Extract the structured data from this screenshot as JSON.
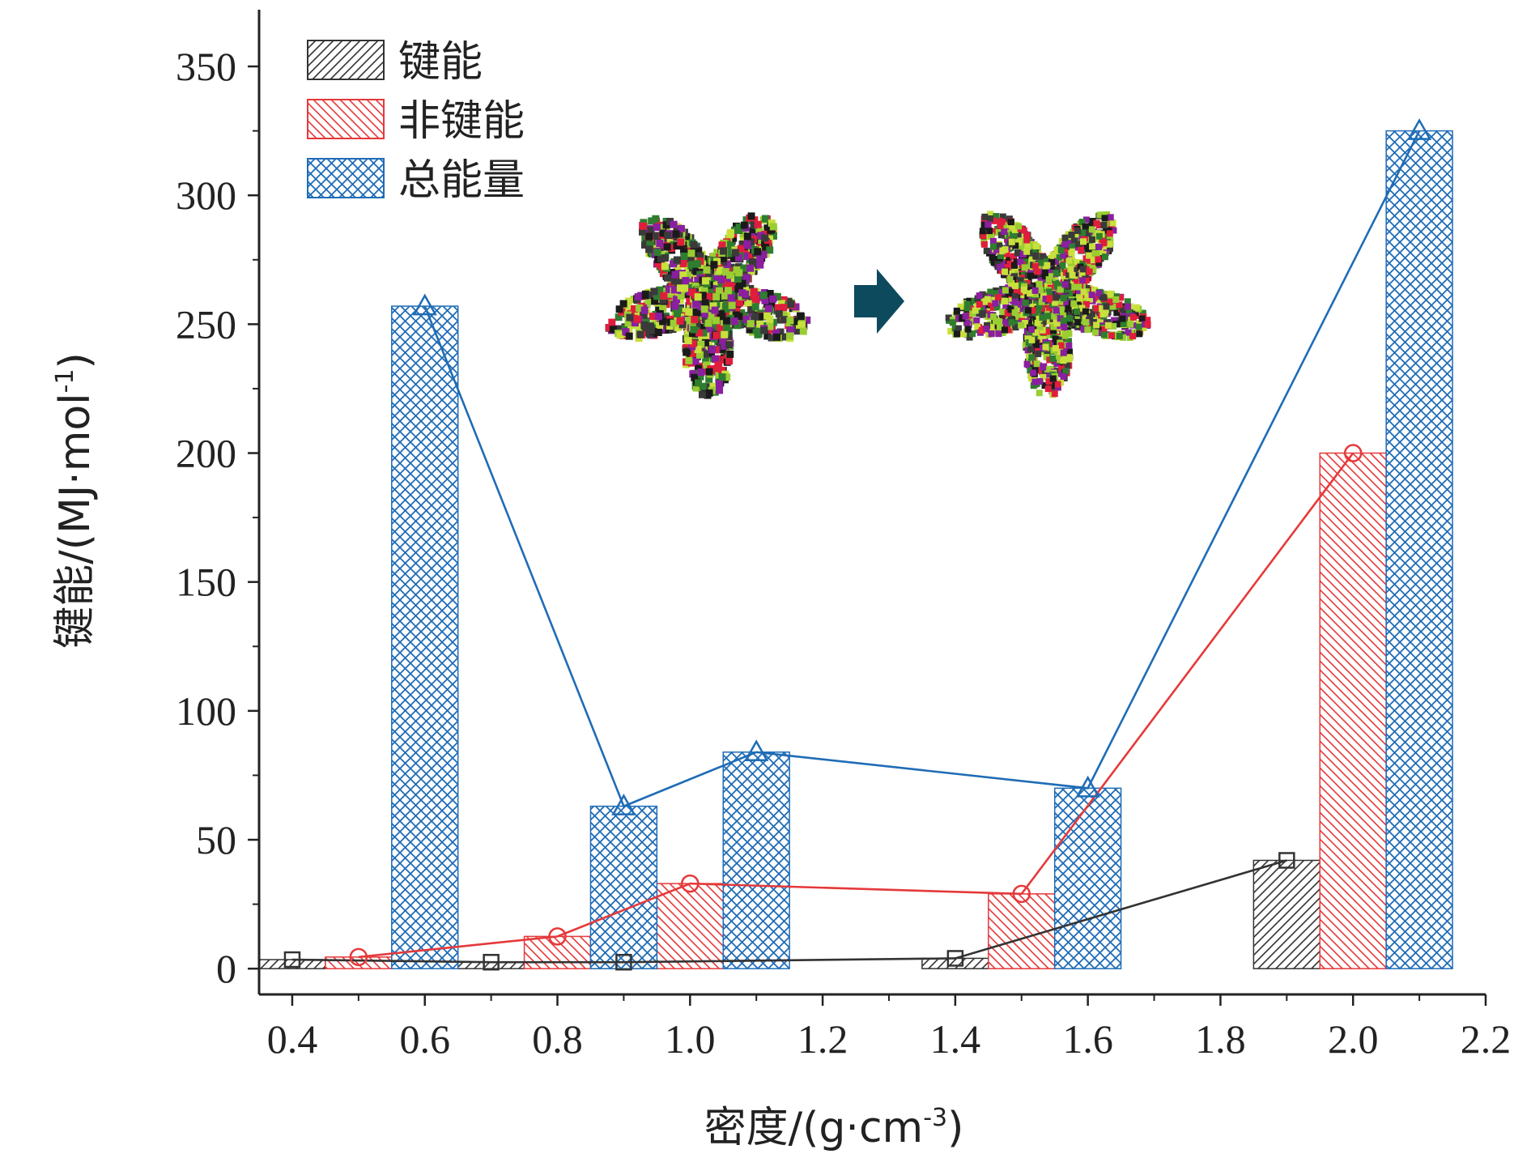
{
  "chart_data": {
    "type": "bar",
    "xlabel": "密度/(g·cm",
    "xlabel_sup": "-3",
    "xlabel_end": ")",
    "ylabel": "键能/(MJ·mol",
    "ylabel_sup": "-1",
    "ylabel_end": ")",
    "xlim": [
      0.35,
      2.2
    ],
    "ylim": [
      -10,
      372
    ],
    "x_ticks": [
      "0.4",
      "0.6",
      "0.8",
      "1.0",
      "1.2",
      "1.4",
      "1.6",
      "1.8",
      "2.0",
      "2.2"
    ],
    "y_ticks": [
      "0",
      "50",
      "100",
      "150",
      "200",
      "250",
      "300",
      "350"
    ],
    "bar_width": 0.1,
    "legend_position": "top-left",
    "series": [
      {
        "name": "键能",
        "color": "#333333",
        "pattern": "forward-hatch",
        "marker": "square",
        "x": [
          0.4,
          0.7,
          0.9,
          1.4,
          1.9
        ],
        "values": [
          3.5,
          2.5,
          2.5,
          4,
          42
        ]
      },
      {
        "name": "非键能",
        "color": "#e5393a",
        "pattern": "back-hatch",
        "marker": "circle",
        "x": [
          0.5,
          0.8,
          1.0,
          1.5,
          2.0
        ],
        "values": [
          4.5,
          12.5,
          33,
          29,
          200
        ]
      },
      {
        "name": "总能量",
        "color": "#1f6cb6",
        "pattern": "crosshatch",
        "marker": "triangle",
        "x": [
          0.6,
          0.9,
          1.1,
          1.6,
          2.1
        ],
        "values": [
          257,
          63,
          84,
          70,
          325
        ]
      }
    ],
    "inset": {
      "arrow_color": "#0d4a5e",
      "colors": [
        "#9acd32",
        "#c8e03c",
        "#e01e3c",
        "#8a1fa0",
        "#1a1a1a",
        "#3a3a3a",
        "#2f7d2f"
      ]
    }
  }
}
